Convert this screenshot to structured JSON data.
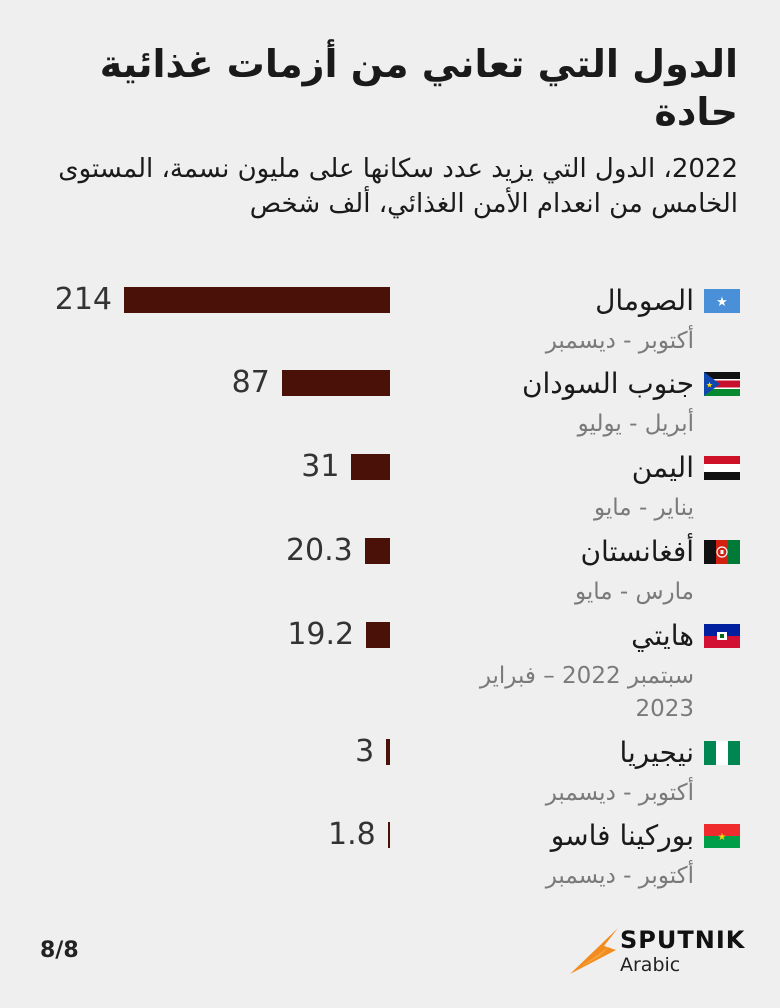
{
  "title": "الدول التي تعاني من أزمات غذائية حادة",
  "subtitle": "2022، الدول التي يزيد عدد سكانها على مليون نسمة، المستوى الخامس من انعدام الأمن الغذائي، ألف شخص",
  "colors": {
    "bar": "#4a1108",
    "background": "#efefef"
  },
  "chart_data": {
    "type": "bar",
    "orientation": "horizontal",
    "categories": [
      "الصومال",
      "جنوب السودان",
      "اليمن",
      "أفغانستان",
      "هايتي",
      "نيجيريا",
      "بوركينا فاسو"
    ],
    "periods": [
      "أكتوبر - ديسمبر",
      "أبريل - يوليو",
      "يناير - مايو",
      "مارس - مايو",
      "سبتمبر 2022 – فبراير 2023",
      "أكتوبر - ديسمبر",
      "أكتوبر - ديسمبر"
    ],
    "values": [
      214,
      87,
      31,
      20.3,
      19.2,
      3,
      1.8
    ],
    "value_labels": [
      "214",
      "87",
      "31",
      "20.3",
      "19.2",
      "3",
      "1.8"
    ],
    "flags": [
      "somalia-flag",
      "south-sudan-flag",
      "yemen-flag",
      "afghanistan-flag",
      "haiti-flag",
      "nigeria-flag",
      "burkina-faso-flag"
    ],
    "xlim": [
      0,
      214
    ]
  },
  "footer": {
    "page_indicator": "8/8",
    "brand": "SPUTNIK",
    "brand_sub": "Arabic"
  }
}
